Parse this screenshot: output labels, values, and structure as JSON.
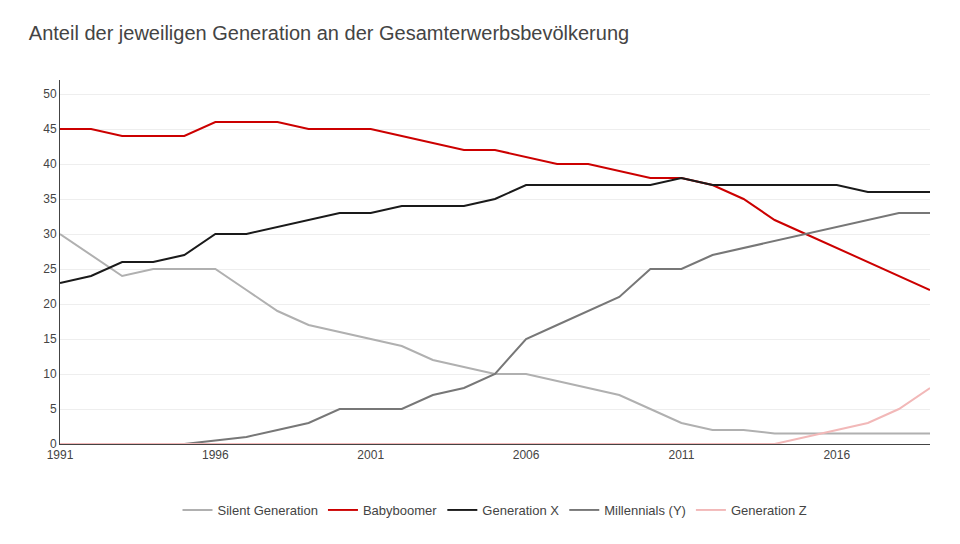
{
  "chart_data": {
    "type": "line",
    "title": "Anteil der jeweiligen Generation an der Gesamterwerbsbevölkerung",
    "x": [
      1991,
      1992,
      1993,
      1994,
      1995,
      1996,
      1997,
      1998,
      1999,
      2000,
      2001,
      2002,
      2003,
      2004,
      2005,
      2006,
      2007,
      2008,
      2009,
      2010,
      2011,
      2012,
      2013,
      2014,
      2015,
      2016,
      2017,
      2018,
      2019
    ],
    "series": [
      {
        "name": "Silent Generation",
        "color": "#b0b0b0",
        "values": [
          30,
          27,
          24,
          25,
          25,
          25,
          22,
          19,
          17,
          16,
          15,
          14,
          12,
          11,
          10,
          10,
          9,
          8,
          7,
          5,
          3,
          2,
          2,
          1.5,
          1.5,
          1.5,
          1.5,
          1.5,
          1.5
        ]
      },
      {
        "name": "Babyboomer",
        "color": "#cc0000",
        "values": [
          45,
          45,
          44,
          44,
          44,
          46,
          46,
          46,
          45,
          45,
          45,
          44,
          43,
          42,
          42,
          41,
          40,
          40,
          39,
          38,
          38,
          37,
          35,
          32,
          30,
          28,
          26,
          24,
          22
        ]
      },
      {
        "name": "Generation X",
        "color": "#1a1a1a",
        "values": [
          23,
          24,
          26,
          26,
          27,
          30,
          30,
          31,
          32,
          33,
          33,
          34,
          34,
          34,
          35,
          37,
          37,
          37,
          37,
          37,
          38,
          37,
          37,
          37,
          37,
          37,
          36,
          36,
          36
        ]
      },
      {
        "name": "Millennials (Y)",
        "color": "#777777",
        "values": [
          0,
          0,
          0,
          0,
          0,
          0.5,
          1,
          2,
          3,
          5,
          5,
          5,
          7,
          8,
          10,
          15,
          17,
          19,
          21,
          25,
          25,
          27,
          28,
          29,
          30,
          31,
          32,
          33,
          33
        ]
      },
      {
        "name": "Generation Z",
        "color": "#f2b8b8",
        "values": [
          0,
          0,
          0,
          0,
          0,
          0,
          0,
          0,
          0,
          0,
          0,
          0,
          0,
          0,
          0,
          0,
          0,
          0,
          0,
          0,
          0,
          0,
          0,
          0,
          1,
          2,
          3,
          5,
          8
        ]
      }
    ],
    "xlim": [
      1991,
      2019
    ],
    "xticks": [
      1991,
      1996,
      2001,
      2006,
      2011,
      2016
    ],
    "ylim": [
      0,
      52
    ],
    "yticks": [
      0,
      5,
      10,
      15,
      20,
      25,
      30,
      35,
      40,
      45,
      50
    ],
    "grid": "y",
    "legend": "bottom"
  }
}
